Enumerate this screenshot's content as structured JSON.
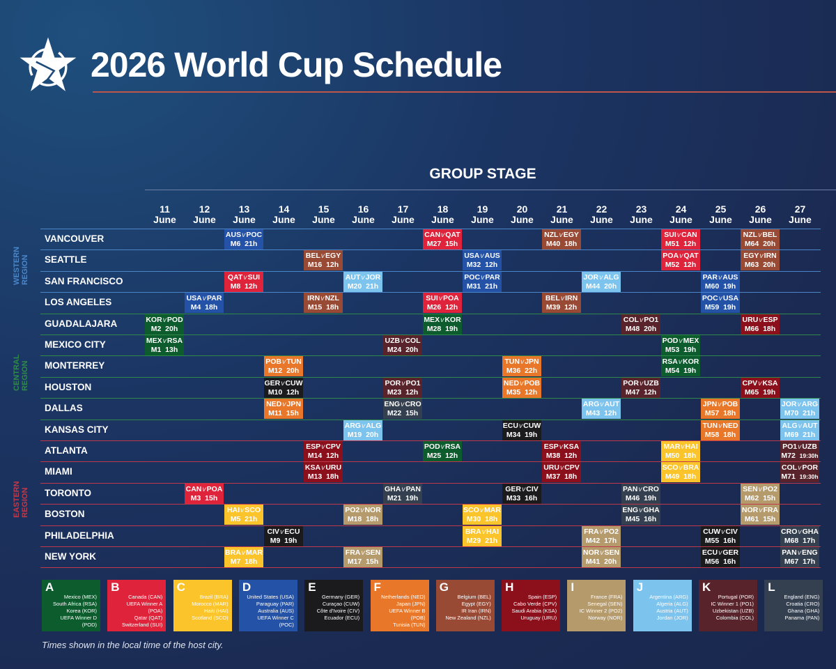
{
  "header": {
    "title": "2026 World Cup Schedule",
    "logo": "star-logo"
  },
  "stage_title": "GROUP STAGE",
  "month": "June",
  "days": [
    "11",
    "12",
    "13",
    "14",
    "15",
    "16",
    "17",
    "18",
    "19",
    "20",
    "21",
    "22",
    "23",
    "24",
    "25",
    "26",
    "27"
  ],
  "regions": [
    {
      "label": "WESTERN REGION",
      "color": "#4a86c8",
      "cities": [
        "VANCOUVER",
        "SEATTLE",
        "SAN FRANCISCO",
        "LOS ANGELES"
      ]
    },
    {
      "label": "CENTRAL REGION",
      "color": "#2f8a4a",
      "cities": [
        "GUADALAJARA",
        "MEXICO CITY",
        "MONTERREY",
        "HOUSTON",
        "DALLAS",
        "KANSAS CITY"
      ]
    },
    {
      "label": "EASTERN REGION",
      "color": "#c0394a",
      "cities": [
        "ATLANTA",
        "MIAMI",
        "TORONTO",
        "BOSTON",
        "PHILADELPHIA",
        "NEW YORK"
      ]
    }
  ],
  "group_colors": {
    "A": "#0d5c2e",
    "B": "#df233b",
    "C": "#fbc42a",
    "D": "#2452a6",
    "E": "#1b1b1d",
    "F": "#e8772a",
    "G": "#994a35",
    "H": "#8c0f1c",
    "I": "#b59a6c",
    "J": "#7cc3ee",
    "K": "#58232a",
    "L": "#34404f"
  },
  "matches": [
    {
      "city": "VANCOUVER",
      "day": "13",
      "group": "D",
      "home": "AUS",
      "away": "POC",
      "match": "M6",
      "time": "21h"
    },
    {
      "city": "VANCOUVER",
      "day": "18",
      "group": "B",
      "home": "CAN",
      "away": "QAT",
      "match": "M27",
      "time": "15h"
    },
    {
      "city": "VANCOUVER",
      "day": "21",
      "group": "G",
      "home": "NZL",
      "away": "EGY",
      "match": "M40",
      "time": "18h"
    },
    {
      "city": "VANCOUVER",
      "day": "24",
      "group": "B",
      "home": "SUI",
      "away": "CAN",
      "match": "M51",
      "time": "12h"
    },
    {
      "city": "VANCOUVER",
      "day": "26",
      "group": "G",
      "home": "NZL",
      "away": "BEL",
      "match": "M64",
      "time": "20h"
    },
    {
      "city": "SEATTLE",
      "day": "15",
      "group": "G",
      "home": "BEL",
      "away": "EGY",
      "match": "M16",
      "time": "12h"
    },
    {
      "city": "SEATTLE",
      "day": "19",
      "group": "D",
      "home": "USA",
      "away": "AUS",
      "match": "M32",
      "time": "12h"
    },
    {
      "city": "SEATTLE",
      "day": "24",
      "group": "B",
      "home": "POA",
      "away": "QAT",
      "match": "M52",
      "time": "12h"
    },
    {
      "city": "SEATTLE",
      "day": "26",
      "group": "G",
      "home": "EGY",
      "away": "IRN",
      "match": "M63",
      "time": "20h"
    },
    {
      "city": "SAN FRANCISCO",
      "day": "13",
      "group": "B",
      "home": "QAT",
      "away": "SUI",
      "match": "M8",
      "time": "12h"
    },
    {
      "city": "SAN FRANCISCO",
      "day": "16",
      "group": "J",
      "home": "AUT",
      "away": "JOR",
      "match": "M20",
      "time": "21h"
    },
    {
      "city": "SAN FRANCISCO",
      "day": "19",
      "group": "D",
      "home": "POC",
      "away": "PAR",
      "match": "M31",
      "time": "21h"
    },
    {
      "city": "SAN FRANCISCO",
      "day": "22",
      "group": "J",
      "home": "JOR",
      "away": "ALG",
      "match": "M44",
      "time": "20h"
    },
    {
      "city": "SAN FRANCISCO",
      "day": "25",
      "group": "D",
      "home": "PAR",
      "away": "AUS",
      "match": "M60",
      "time": "19h"
    },
    {
      "city": "LOS ANGELES",
      "day": "12",
      "group": "D",
      "home": "USA",
      "away": "PAR",
      "match": "M4",
      "time": "18h"
    },
    {
      "city": "LOS ANGELES",
      "day": "15",
      "group": "G",
      "home": "IRN",
      "away": "NZL",
      "match": "M15",
      "time": "18h"
    },
    {
      "city": "LOS ANGELES",
      "day": "18",
      "group": "B",
      "home": "SUI",
      "away": "POA",
      "match": "M26",
      "time": "12h"
    },
    {
      "city": "LOS ANGELES",
      "day": "21",
      "group": "G",
      "home": "BEL",
      "away": "IRN",
      "match": "M39",
      "time": "12h"
    },
    {
      "city": "LOS ANGELES",
      "day": "25",
      "group": "D",
      "home": "POC",
      "away": "USA",
      "match": "M59",
      "time": "19h"
    },
    {
      "city": "GUADALAJARA",
      "day": "11",
      "group": "A",
      "home": "KOR",
      "away": "POD",
      "match": "M2",
      "time": "20h"
    },
    {
      "city": "GUADALAJARA",
      "day": "18",
      "group": "A",
      "home": "MEX",
      "away": "KOR",
      "match": "M28",
      "time": "19h"
    },
    {
      "city": "GUADALAJARA",
      "day": "23",
      "group": "K",
      "home": "COL",
      "away": "PO1",
      "match": "M48",
      "time": "20h"
    },
    {
      "city": "GUADALAJARA",
      "day": "26",
      "group": "H",
      "home": "URU",
      "away": "ESP",
      "match": "M66",
      "time": "18h"
    },
    {
      "city": "MEXICO CITY",
      "day": "11",
      "group": "A",
      "home": "MEX",
      "away": "RSA",
      "match": "M1",
      "time": "13h"
    },
    {
      "city": "MEXICO CITY",
      "day": "17",
      "group": "K",
      "home": "UZB",
      "away": "COL",
      "match": "M24",
      "time": "20h"
    },
    {
      "city": "MEXICO CITY",
      "day": "24",
      "group": "A",
      "home": "POD",
      "away": "MEX",
      "match": "M53",
      "time": "19h"
    },
    {
      "city": "MONTERREY",
      "day": "14",
      "group": "F",
      "home": "POB",
      "away": "TUN",
      "match": "M12",
      "time": "20h"
    },
    {
      "city": "MONTERREY",
      "day": "20",
      "group": "F",
      "home": "TUN",
      "away": "JPN",
      "match": "M36",
      "time": "22h"
    },
    {
      "city": "MONTERREY",
      "day": "24",
      "group": "A",
      "home": "RSA",
      "away": "KOR",
      "match": "M54",
      "time": "19h"
    },
    {
      "city": "HOUSTON",
      "day": "14",
      "group": "E",
      "home": "GER",
      "away": "CUW",
      "match": "M10",
      "time": "12h"
    },
    {
      "city": "HOUSTON",
      "day": "17",
      "group": "K",
      "home": "POR",
      "away": "PO1",
      "match": "M23",
      "time": "12h"
    },
    {
      "city": "HOUSTON",
      "day": "20",
      "group": "F",
      "home": "NED",
      "away": "POB",
      "match": "M35",
      "time": "12h"
    },
    {
      "city": "HOUSTON",
      "day": "23",
      "group": "K",
      "home": "POR",
      "away": "UZB",
      "match": "M47",
      "time": "12h"
    },
    {
      "city": "HOUSTON",
      "day": "26",
      "group": "H",
      "home": "CPV",
      "away": "KSA",
      "match": "M65",
      "time": "19h"
    },
    {
      "city": "DALLAS",
      "day": "14",
      "group": "F",
      "home": "NED",
      "away": "JPN",
      "match": "M11",
      "time": "15h"
    },
    {
      "city": "DALLAS",
      "day": "17",
      "group": "L",
      "home": "ENG",
      "away": "CRO",
      "match": "M22",
      "time": "15h"
    },
    {
      "city": "DALLAS",
      "day": "22",
      "group": "J",
      "home": "ARG",
      "away": "AUT",
      "match": "M43",
      "time": "12h"
    },
    {
      "city": "DALLAS",
      "day": "25",
      "group": "F",
      "home": "JPN",
      "away": "POB",
      "match": "M57",
      "time": "18h"
    },
    {
      "city": "DALLAS",
      "day": "27",
      "group": "J",
      "home": "JOR",
      "away": "ARG",
      "match": "M70",
      "time": "21h"
    },
    {
      "city": "KANSAS CITY",
      "day": "16",
      "group": "J",
      "home": "ARG",
      "away": "ALG",
      "match": "M19",
      "time": "20h"
    },
    {
      "city": "KANSAS CITY",
      "day": "20",
      "group": "E",
      "home": "ECU",
      "away": "CUW",
      "match": "M34",
      "time": "19h"
    },
    {
      "city": "KANSAS CITY",
      "day": "25",
      "group": "F",
      "home": "TUN",
      "away": "NED",
      "match": "M58",
      "time": "18h"
    },
    {
      "city": "KANSAS CITY",
      "day": "27",
      "group": "J",
      "home": "ALG",
      "away": "AUT",
      "match": "M69",
      "time": "21h"
    },
    {
      "city": "ATLANTA",
      "day": "15",
      "group": "H",
      "home": "ESP",
      "away": "CPV",
      "match": "M14",
      "time": "12h"
    },
    {
      "city": "ATLANTA",
      "day": "18",
      "group": "A",
      "home": "POD",
      "away": "RSA",
      "match": "M25",
      "time": "12h"
    },
    {
      "city": "ATLANTA",
      "day": "21",
      "group": "H",
      "home": "ESP",
      "away": "KSA",
      "match": "M38",
      "time": "12h"
    },
    {
      "city": "ATLANTA",
      "day": "24",
      "group": "C",
      "home": "MAR",
      "away": "HAI",
      "match": "M50",
      "time": "18h"
    },
    {
      "city": "ATLANTA",
      "day": "27",
      "group": "K",
      "home": "PO1",
      "away": "UZB",
      "match": "M72",
      "time": "19:30h"
    },
    {
      "city": "MIAMI",
      "day": "15",
      "group": "H",
      "home": "KSA",
      "away": "URU",
      "match": "M13",
      "time": "18h"
    },
    {
      "city": "MIAMI",
      "day": "21",
      "group": "H",
      "home": "URU",
      "away": "CPV",
      "match": "M37",
      "time": "18h"
    },
    {
      "city": "MIAMI",
      "day": "24",
      "group": "C",
      "home": "SCO",
      "away": "BRA",
      "match": "M49",
      "time": "18h"
    },
    {
      "city": "MIAMI",
      "day": "27",
      "group": "K",
      "home": "COL",
      "away": "POR",
      "match": "M71",
      "time": "19:30h"
    },
    {
      "city": "TORONTO",
      "day": "12",
      "group": "B",
      "home": "CAN",
      "away": "POA",
      "match": "M3",
      "time": "15h"
    },
    {
      "city": "TORONTO",
      "day": "17",
      "group": "L",
      "home": "GHA",
      "away": "PAN",
      "match": "M21",
      "time": "19h"
    },
    {
      "city": "TORONTO",
      "day": "20",
      "group": "E",
      "home": "GER",
      "away": "CIV",
      "match": "M33",
      "time": "16h"
    },
    {
      "city": "TORONTO",
      "day": "23",
      "group": "L",
      "home": "PAN",
      "away": "CRO",
      "match": "M46",
      "time": "19h"
    },
    {
      "city": "TORONTO",
      "day": "26",
      "group": "I",
      "home": "SEN",
      "away": "PO2",
      "match": "M62",
      "time": "15h"
    },
    {
      "city": "BOSTON",
      "day": "13",
      "group": "C",
      "home": "HAI",
      "away": "SCO",
      "match": "M5",
      "time": "21h"
    },
    {
      "city": "BOSTON",
      "day": "16",
      "group": "I",
      "home": "PO2",
      "away": "NOR",
      "match": "M18",
      "time": "18h"
    },
    {
      "city": "BOSTON",
      "day": "19",
      "group": "C",
      "home": "SCO",
      "away": "MAR",
      "match": "M30",
      "time": "18h"
    },
    {
      "city": "BOSTON",
      "day": "23",
      "group": "L",
      "home": "ENG",
      "away": "GHA",
      "match": "M45",
      "time": "16h"
    },
    {
      "city": "BOSTON",
      "day": "26",
      "group": "I",
      "home": "NOR",
      "away": "FRA",
      "match": "M61",
      "time": "15h"
    },
    {
      "city": "PHILADELPHIA",
      "day": "14",
      "group": "E",
      "home": "CIV",
      "away": "ECU",
      "match": "M9",
      "time": "19h"
    },
    {
      "city": "PHILADELPHIA",
      "day": "19",
      "group": "C",
      "home": "BRA",
      "away": "HAI",
      "match": "M29",
      "time": "21h"
    },
    {
      "city": "PHILADELPHIA",
      "day": "22",
      "group": "I",
      "home": "FRA",
      "away": "PO2",
      "match": "M42",
      "time": "17h"
    },
    {
      "city": "PHILADELPHIA",
      "day": "25",
      "group": "E",
      "home": "CUW",
      "away": "CIV",
      "match": "M55",
      "time": "16h"
    },
    {
      "city": "PHILADELPHIA",
      "day": "27",
      "group": "L",
      "home": "CRO",
      "away": "GHA",
      "match": "M68",
      "time": "17h"
    },
    {
      "city": "NEW YORK",
      "day": "13",
      "group": "C",
      "home": "BRA",
      "away": "MAR",
      "match": "M7",
      "time": "18h"
    },
    {
      "city": "NEW YORK",
      "day": "16",
      "group": "I",
      "home": "FRA",
      "away": "SEN",
      "match": "M17",
      "time": "15h"
    },
    {
      "city": "NEW YORK",
      "day": "22",
      "group": "I",
      "home": "NOR",
      "away": "SEN",
      "match": "M41",
      "time": "20h"
    },
    {
      "city": "NEW YORK",
      "day": "25",
      "group": "E",
      "home": "ECU",
      "away": "GER",
      "match": "M56",
      "time": "16h"
    },
    {
      "city": "NEW YORK",
      "day": "27",
      "group": "L",
      "home": "PAN",
      "away": "ENG",
      "match": "M67",
      "time": "17h"
    }
  ],
  "versus": "v",
  "groups": [
    {
      "letter": "A",
      "teams": [
        "Mexico (MEX)",
        "South Africa (RSA)",
        "Korea (KOR)",
        "UEFA Winner D (POD)"
      ]
    },
    {
      "letter": "B",
      "teams": [
        "Canada (CAN)",
        "UEFA Winner A (POA)",
        "Qatar (QAT)",
        "Switzerland (SUI)"
      ]
    },
    {
      "letter": "C",
      "teams": [
        "Brazil (BRA)",
        "Morocco (MAR)",
        "Haiti (HAI)",
        "Scotland (SCO)"
      ]
    },
    {
      "letter": "D",
      "teams": [
        "United States (USA)",
        "Paraguay (PAR)",
        "Australia (AUS)",
        "UEFA Winner C (POC)"
      ]
    },
    {
      "letter": "E",
      "teams": [
        "Germany (GER)",
        "Curaçao (CUW)",
        "Côte d'Ivoire (CIV)",
        "Ecuador (ECU)"
      ]
    },
    {
      "letter": "F",
      "teams": [
        "Netherlands (NED)",
        "Japan (JPN)",
        "UEFA Winner B (POB)",
        "Tunisia (TUN)"
      ]
    },
    {
      "letter": "G",
      "teams": [
        "Belgium (BEL)",
        "Egypt (EGY)",
        "IR Iran (IRN)",
        "New Zealand (NZL)"
      ]
    },
    {
      "letter": "H",
      "teams": [
        "Spain (ESP)",
        "Cabo Verde (CPV)",
        "Saudi Arabia (KSA)",
        "Uruguay (URU)"
      ]
    },
    {
      "letter": "I",
      "teams": [
        "France (FRA)",
        "Senegal (SEN)",
        "IC Winner 2 (PO2)",
        "Norway (NOR)"
      ]
    },
    {
      "letter": "J",
      "teams": [
        "Argentina (ARG)",
        "Algeria (ALG)",
        "Austria (AUT)",
        "Jordan (JOR)"
      ]
    },
    {
      "letter": "K",
      "teams": [
        "Portugal (POR)",
        "IC Winner 1 (PO1)",
        "Uzbekistan (UZB)",
        "Colombia (COL)"
      ]
    },
    {
      "letter": "L",
      "teams": [
        "England (ENG)",
        "Croatia (CRO)",
        "Ghana (GHA)",
        "Panama (PAN)"
      ]
    }
  ],
  "footnote": "Times shown in the local time of the host city."
}
